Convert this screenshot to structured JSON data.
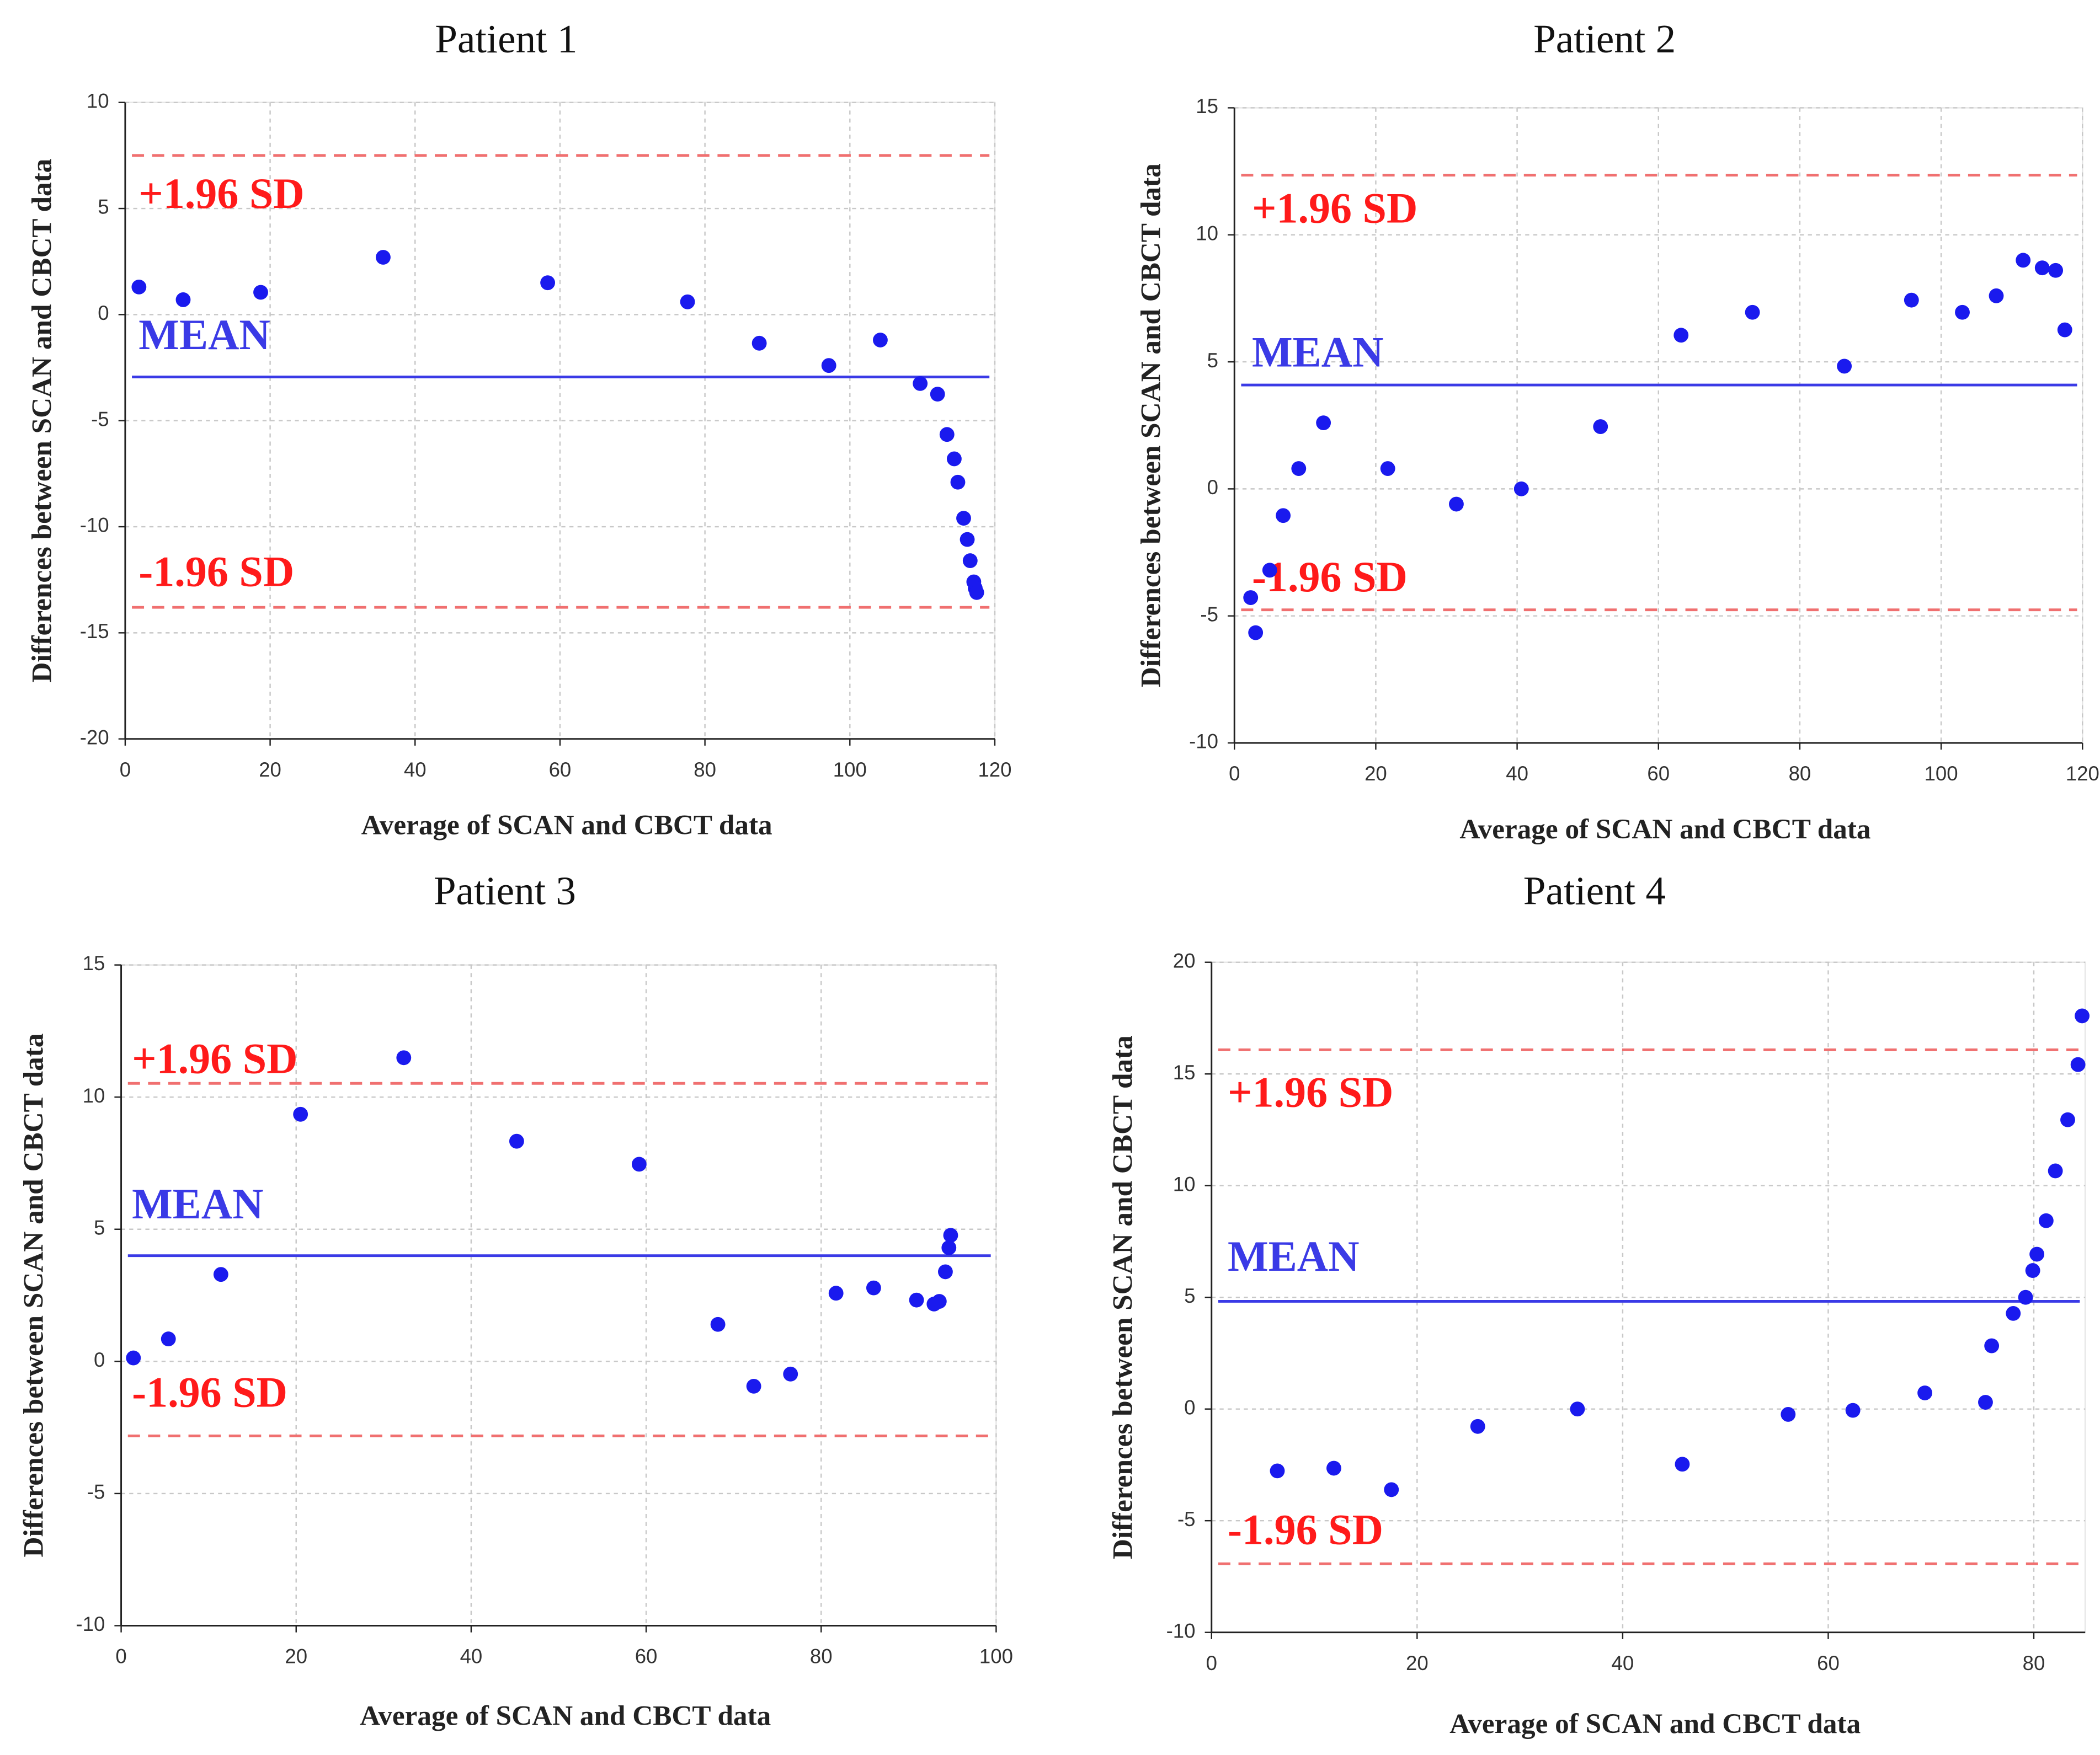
{
  "chart_data": [
    {
      "type": "scatter",
      "title": "Patient 1",
      "xlabel": "Average of SCAN and CBCT data",
      "ylabel": "Differences between SCAN and CBCT data",
      "x": [
        1.9,
        8.0,
        18.7,
        35.6,
        58.3,
        77.6,
        87.5,
        97.1,
        104.2,
        109.7,
        112.1,
        113.4,
        114.4,
        114.9,
        115.7,
        116.2,
        116.6,
        117.1,
        117.3,
        117.5
      ],
      "values": [
        1.3,
        0.7,
        1.05,
        2.7,
        1.5,
        0.6,
        -1.35,
        -2.4,
        -1.2,
        -3.25,
        -3.75,
        -5.65,
        -6.8,
        -7.9,
        -9.6,
        -10.6,
        -11.6,
        -12.6,
        -12.9,
        -13.1
      ],
      "color": "#1a1aee",
      "xlim": [
        0,
        120
      ],
      "ylim": [
        -20,
        10
      ],
      "xticks": [
        0,
        20,
        40,
        60,
        80,
        100,
        120
      ],
      "yticks": [
        -20,
        -15,
        -10,
        -5,
        0,
        5,
        10
      ],
      "grid": true,
      "lines": [
        {
          "label": "+1.96 SD",
          "value": 7.5,
          "color": "#f07070",
          "dashed": true
        },
        {
          "label": "MEAN",
          "value": -2.94,
          "color": "#3a3ae6",
          "dashed": false
        },
        {
          "label": "-1.96 SD",
          "value": -13.8,
          "color": "#f07070",
          "dashed": true
        }
      ]
    },
    {
      "type": "scatter",
      "title": "Patient 2",
      "xlabel": "Average of SCAN and CBCT data",
      "ylabel": "Differences between SCAN and CBCT data",
      "x": [
        2.3,
        3.0,
        5.0,
        6.9,
        9.1,
        12.6,
        21.7,
        31.4,
        40.6,
        51.8,
        63.2,
        73.3,
        86.3,
        95.8,
        103.0,
        107.8,
        111.6,
        114.3,
        116.2,
        117.5
      ],
      "values": [
        -4.28,
        -5.66,
        -3.2,
        -1.05,
        0.8,
        2.6,
        0.8,
        -0.6,
        0.0,
        2.45,
        6.05,
        6.95,
        4.83,
        7.43,
        6.95,
        7.6,
        9.0,
        8.7,
        8.6,
        6.26
      ],
      "color": "#1a1aee",
      "xlim": [
        0,
        120
      ],
      "ylim": [
        -10,
        15
      ],
      "xticks": [
        0,
        20,
        40,
        60,
        80,
        100,
        120
      ],
      "yticks": [
        -10,
        -5,
        0,
        5,
        10,
        15
      ],
      "grid": true,
      "lines": [
        {
          "label": "+1.96 SD",
          "value": 12.35,
          "color": "#f07070",
          "dashed": true
        },
        {
          "label": "MEAN",
          "value": 4.09,
          "color": "#3a3ae6",
          "dashed": false
        },
        {
          "label": "-1.96 SD",
          "value": -4.76,
          "color": "#f07070",
          "dashed": true
        }
      ]
    },
    {
      "type": "scatter",
      "title": "Patient 3",
      "xlabel": "Average of SCAN and CBCT data",
      "ylabel": "Differences between SCAN and CBCT data",
      "x": [
        1.4,
        5.4,
        11.4,
        20.5,
        32.3,
        45.2,
        59.2,
        68.2,
        72.3,
        76.5,
        81.7,
        86.0,
        90.9,
        92.9,
        93.5,
        94.2,
        94.6,
        94.8
      ],
      "values": [
        0.13,
        0.85,
        3.29,
        9.35,
        11.49,
        8.33,
        7.46,
        1.4,
        -0.94,
        -0.48,
        2.58,
        2.78,
        2.32,
        2.17,
        2.27,
        3.39,
        4.3,
        4.77
      ],
      "color": "#1a1aee",
      "xlim": [
        0,
        100
      ],
      "ylim": [
        -10,
        15
      ],
      "xticks": [
        0,
        20,
        40,
        60,
        80,
        100
      ],
      "yticks": [
        -10,
        -5,
        0,
        5,
        10,
        15
      ],
      "grid": true,
      "lines": [
        {
          "label": "+1.96 SD",
          "value": 10.52,
          "color": "#f07070",
          "dashed": true
        },
        {
          "label": "MEAN",
          "value": 4.0,
          "color": "#3a3ae6",
          "dashed": false
        },
        {
          "label": "-1.96 SD",
          "value": -2.82,
          "color": "#f07070",
          "dashed": true
        }
      ]
    },
    {
      "type": "scatter",
      "title": "Patient 4",
      "xlabel": "Average of SCAN and CBCT data",
      "ylabel": "Differences between SCAN and CBCT data",
      "x": [
        6.4,
        11.9,
        17.5,
        25.9,
        35.6,
        45.8,
        56.1,
        62.4,
        69.4,
        75.3,
        75.9,
        78.0,
        79.2,
        79.9,
        80.3,
        81.2,
        82.1,
        83.3,
        84.3,
        84.7
      ],
      "values": [
        -2.77,
        -2.65,
        -3.61,
        -0.78,
        0.0,
        -2.47,
        -0.24,
        -0.06,
        0.72,
        0.3,
        2.83,
        4.28,
        5.0,
        6.2,
        6.93,
        8.43,
        10.66,
        12.95,
        15.42,
        17.6
      ],
      "color": "#1a1aee",
      "xlim": [
        0,
        85
      ],
      "ylim": [
        -10,
        20
      ],
      "xticks": [
        0,
        20,
        40,
        60,
        80
      ],
      "yticks": [
        -10,
        -5,
        0,
        5,
        10,
        15,
        20
      ],
      "grid": true,
      "lines": [
        {
          "label": "+1.96 SD",
          "value": 16.08,
          "color": "#f07070",
          "dashed": true
        },
        {
          "label": "MEAN",
          "value": 4.82,
          "color": "#3a3ae6",
          "dashed": false
        },
        {
          "label": "-1.96 SD",
          "value": -6.93,
          "color": "#f07070",
          "dashed": true
        }
      ]
    }
  ]
}
